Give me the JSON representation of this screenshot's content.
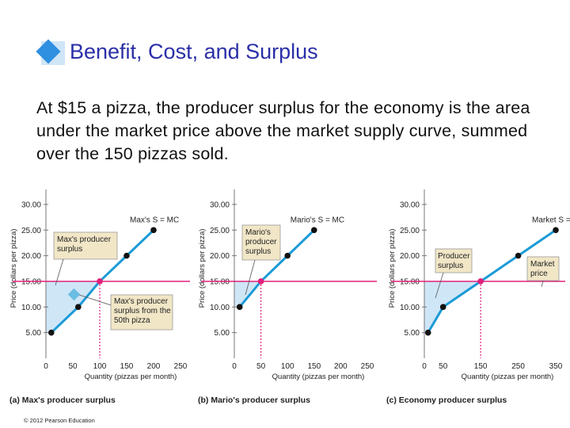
{
  "title": "Benefit, Cost, and Surplus",
  "body": "At $15 a pizza, the producer surplus for the economy is the area under the market price above the market supply curve, summed over the 150 pizzas sold.",
  "copyright": "© 2012 Pearson Education",
  "colors": {
    "title": "#2b2fa8",
    "supply": "#1a9ad6",
    "price": "#e0207a",
    "surplus": "#cfe6f7",
    "box": "#f1e6c6"
  },
  "chart_data": [
    {
      "type": "line",
      "caption": "(a) Max's producer surplus",
      "ylabel": "Price (dollars per pizza)",
      "xlabel": "Quantity (pizzas per month)",
      "xticks": [
        "0",
        "50",
        "100",
        "150",
        "200",
        "250"
      ],
      "yticks": [
        "5.00",
        "10.00",
        "15.00",
        "20.00",
        "25.00",
        "30.00"
      ],
      "xlim": [
        0,
        250
      ],
      "ylim": [
        0,
        32
      ],
      "price": 15,
      "price_label": "15.00",
      "series": [
        {
          "name": "Max's S = MC",
          "points": [
            [
              10,
              5
            ],
            [
              60,
              10
            ],
            [
              100,
              15
            ],
            [
              150,
              20
            ],
            [
              200,
              25
            ]
          ]
        }
      ],
      "annotations": [
        "Max's producer surplus",
        "Max's producer surplus from the 50th pizza"
      ]
    },
    {
      "type": "line",
      "caption": "(b) Mario's producer surplus",
      "ylabel": "Price (dollars per pizza)",
      "xlabel": "Quantity (pizzas per month)",
      "xticks": [
        "0",
        "50",
        "100",
        "150",
        "200",
        "250"
      ],
      "yticks": [
        "5.00",
        "10.00",
        "15.00",
        "20.00",
        "25.00",
        "30.00"
      ],
      "xlim": [
        0,
        250
      ],
      "ylim": [
        0,
        32
      ],
      "price": 15,
      "price_label": "15.00",
      "series": [
        {
          "name": "Mario's S = MC",
          "points": [
            [
              10,
              10
            ],
            [
              50,
              15
            ],
            [
              100,
              20
            ],
            [
              150,
              25
            ]
          ]
        }
      ],
      "annotations": [
        "Mario's producer surplus"
      ]
    },
    {
      "type": "line",
      "caption": "(c) Economy producer surplus",
      "ylabel": "Price (dollars per pizza)",
      "xlabel": "Quantity (pizzas per month)",
      "xticks": [
        "0",
        "50",
        "150",
        "250",
        "350"
      ],
      "yticks": [
        "5.00",
        "10.00",
        "15.00",
        "20.00",
        "25.00",
        "30.00"
      ],
      "xlim": [
        0,
        350
      ],
      "ylim": [
        0,
        32
      ],
      "price": 15,
      "price_label": "15.00",
      "series": [
        {
          "name": "Market S = MSC",
          "points": [
            [
              10,
              5
            ],
            [
              50,
              10
            ],
            [
              150,
              15
            ],
            [
              250,
              20
            ],
            [
              350,
              25
            ]
          ]
        }
      ],
      "annotations": [
        "Producer surplus",
        "Market price"
      ]
    }
  ]
}
